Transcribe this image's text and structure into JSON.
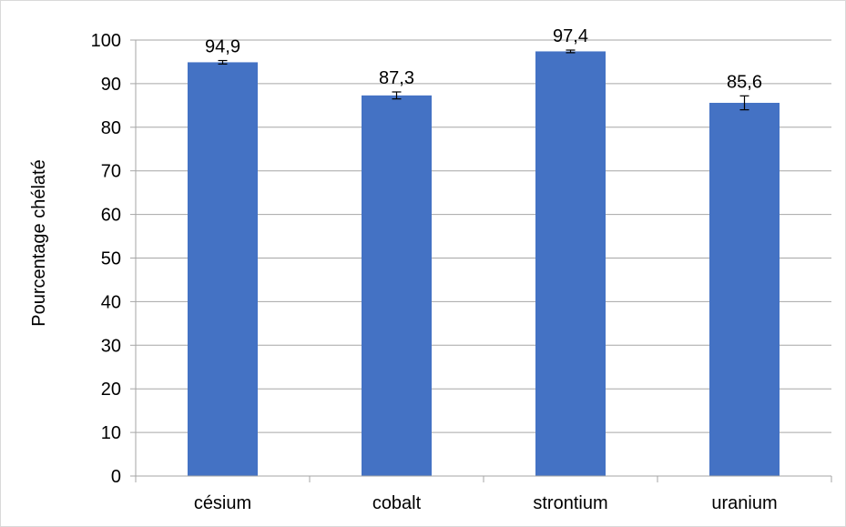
{
  "chart_data": {
    "type": "bar",
    "title": "",
    "xlabel": "",
    "ylabel": "Pourcentage chélaté",
    "categories": [
      "césium",
      "cobalt",
      "strontium",
      "uranium"
    ],
    "values": [
      94.9,
      87.3,
      97.4,
      85.6
    ],
    "value_labels": [
      "94,9",
      "87,3",
      "97,4",
      "85,6"
    ],
    "error_bars": [
      0.4,
      0.8,
      0.3,
      1.6
    ],
    "ylim": [
      0,
      100
    ],
    "yticks": [
      0,
      10,
      20,
      30,
      40,
      50,
      60,
      70,
      80,
      90,
      100
    ],
    "ytick_labels": [
      "0",
      "10",
      "20",
      "30",
      "40",
      "50",
      "60",
      "70",
      "80",
      "90",
      "100"
    ],
    "grid": true,
    "legend": "none",
    "colors": {
      "bar": "#4472c4",
      "grid": "#a6a6a6",
      "axis": "#a6a6a6"
    }
  }
}
